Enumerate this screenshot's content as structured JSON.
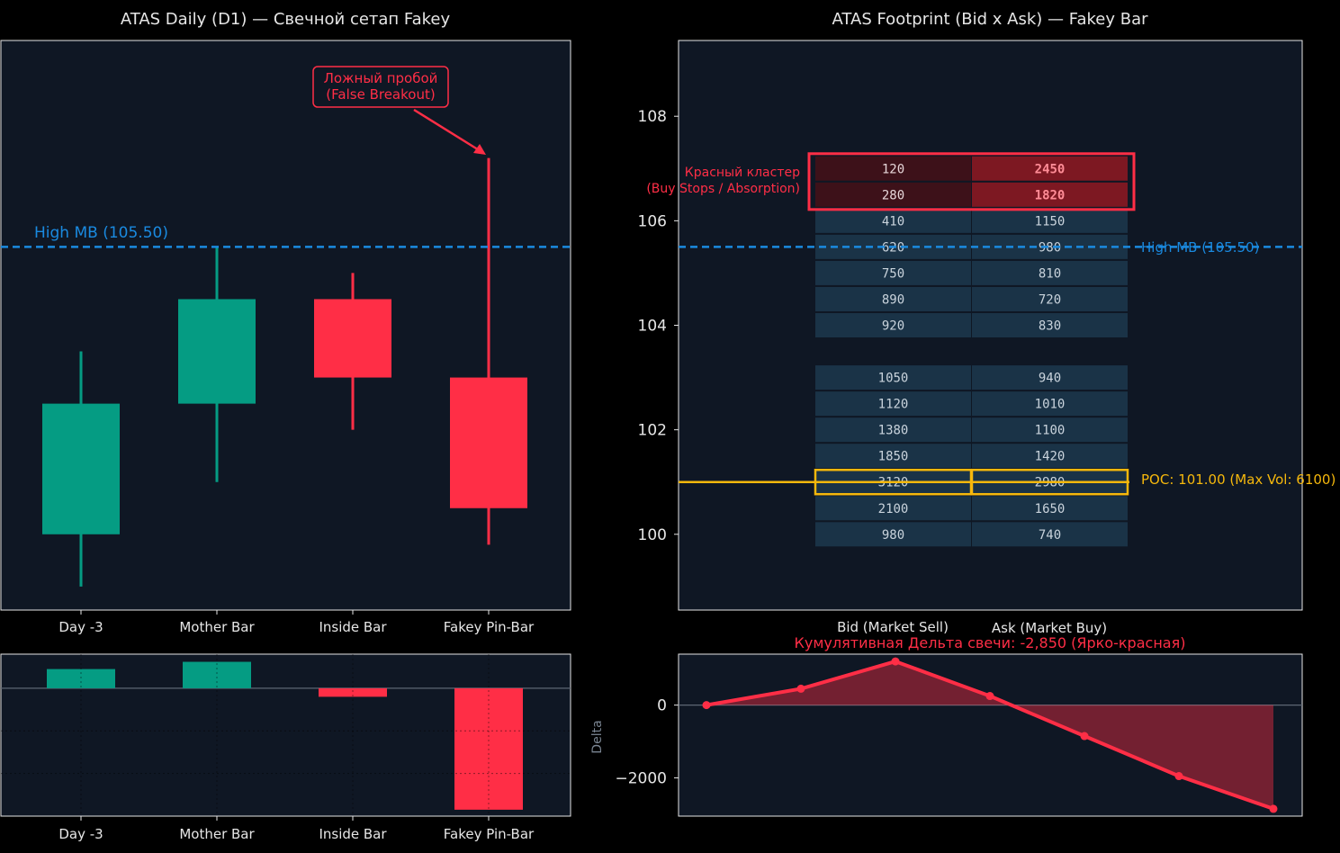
{
  "colors": {
    "background": "#000000",
    "panel": "#0f1724",
    "bull": "#059c83",
    "bear": "#ff2e46",
    "high_mb": "#1a8ae0",
    "poc": "#f6b80c",
    "cell": "#1a3347",
    "cell_red": "#7d1822",
    "cell_red_bid": "#3d1119",
    "text": "#e6e6e6",
    "cell_text": "#c9d3dc",
    "delta_label": "#7a8592"
  },
  "chart_data": [
    {
      "id": "daily",
      "type": "candlestick",
      "title": "ATAS Daily (D1) — Свечной сетап Fakey",
      "categories": [
        "Day -3",
        "Mother Bar",
        "Inside Bar",
        "Fakey Pin-Bar"
      ],
      "candles": [
        {
          "open": 100.0,
          "high": 103.5,
          "low": 99.0,
          "close": 102.5,
          "color": "bull"
        },
        {
          "open": 102.5,
          "high": 105.5,
          "low": 101.0,
          "close": 104.5,
          "color": "bull"
        },
        {
          "open": 104.5,
          "high": 105.0,
          "low": 102.0,
          "close": 103.0,
          "color": "bear"
        },
        {
          "open": 103.0,
          "high": 107.2,
          "low": 99.8,
          "close": 100.5,
          "color": "bear"
        }
      ],
      "ylim": [
        98.55,
        109.45
      ],
      "grid": false,
      "hline": {
        "value": 105.5,
        "label": "High MB (105.50)"
      },
      "annotation": {
        "text_line1": "Ложный пробой",
        "text_line2": "(False Breakout)",
        "target": [
          3,
          107.2
        ]
      }
    },
    {
      "id": "daily_delta",
      "type": "bar",
      "categories": [
        "Day -3",
        "Mother Bar",
        "Inside Bar",
        "Fakey Pin-Bar"
      ],
      "values": [
        450,
        620,
        -200,
        -2850
      ],
      "colors": [
        "bull",
        "bull",
        "bear",
        "bear"
      ],
      "ylim": [
        -3000,
        800
      ]
    },
    {
      "id": "footprint",
      "type": "table",
      "title": "ATAS Footprint (Bid x Ask) — Fakey Bar",
      "columns": [
        "Bid (Market Sell)",
        "Ask (Market Buy)"
      ],
      "ylim": [
        98.55,
        109.45
      ],
      "yticks": [
        100,
        102,
        104,
        106,
        108
      ],
      "rows": [
        {
          "price": 107.0,
          "bid": "120",
          "ask": "2450",
          "highlight": "red"
        },
        {
          "price": 106.5,
          "bid": "280",
          "ask": "1820",
          "highlight": "red"
        },
        {
          "price": 106.0,
          "bid": "410",
          "ask": "1150"
        },
        {
          "price": 105.5,
          "bid": "620",
          "ask": "980"
        },
        {
          "price": 105.0,
          "bid": "750",
          "ask": "810"
        },
        {
          "price": 104.5,
          "bid": "890",
          "ask": "720"
        },
        {
          "price": 104.0,
          "bid": "920",
          "ask": "830"
        },
        {
          "price": 103.0,
          "bid": "1050",
          "ask": "940"
        },
        {
          "price": 102.5,
          "bid": "1120",
          "ask": "1010"
        },
        {
          "price": 102.0,
          "bid": "1380",
          "ask": "1100"
        },
        {
          "price": 101.5,
          "bid": "1850",
          "ask": "1420"
        },
        {
          "price": 101.0,
          "bid": "3120",
          "ask": "2980",
          "highlight": "poc"
        },
        {
          "price": 100.5,
          "bid": "2100",
          "ask": "1650"
        },
        {
          "price": 100.0,
          "bid": "980",
          "ask": "740"
        }
      ],
      "hline": {
        "value": 105.5,
        "label": "High MB (105.50)"
      },
      "poc": {
        "value": 101.0,
        "label": "POC: 101.00 (Max Vol: 6100)"
      },
      "red_cluster_label_line1": "Красный кластер",
      "red_cluster_label_line2": "(Buy Stops / Absorption)"
    },
    {
      "id": "cum_delta",
      "type": "area",
      "title": "Кумулятивная Дельта свечи: -2,850 (Ярко-красная)",
      "ylabel": "Delta",
      "x": [
        0,
        1,
        2,
        3,
        4,
        5,
        6
      ],
      "values": [
        0,
        450,
        1200,
        250,
        -850,
        -1950,
        -2850
      ],
      "ylim": [
        -3050,
        1400
      ],
      "yticks": [
        0,
        -2000
      ]
    }
  ]
}
